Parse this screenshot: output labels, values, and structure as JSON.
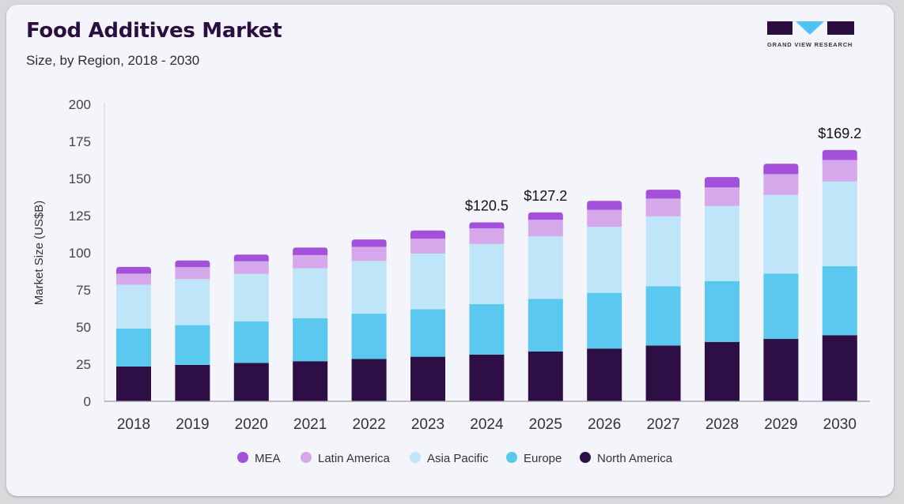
{
  "header": {
    "title": "Food Additives Market",
    "subtitle": "Size, by Region, 2018 - 2030"
  },
  "brand": {
    "name": "GRAND VIEW RESEARCH",
    "logo_colors": [
      "#2b0f41",
      "#4fc3f7",
      "#2b0f41"
    ]
  },
  "chart_data": {
    "type": "bar",
    "stacked": true,
    "title": "Food Additives Market",
    "subtitle": "Size, by Region, 2018 - 2030",
    "xlabel": "",
    "ylabel": "Market Size (US$B)",
    "ylim": [
      0,
      200
    ],
    "yticks": [
      0,
      25,
      50,
      75,
      100,
      125,
      150,
      175,
      200
    ],
    "grid": false,
    "legend_position": "bottom",
    "categories": [
      "2018",
      "2019",
      "2020",
      "2021",
      "2022",
      "2023",
      "2024",
      "2025",
      "2026",
      "2027",
      "2028",
      "2029",
      "2030"
    ],
    "series": [
      {
        "name": "North America",
        "color": "#2d0e45",
        "values": [
          23.5,
          24.5,
          25.8,
          27.0,
          28.5,
          30.0,
          31.5,
          33.5,
          35.5,
          37.5,
          40.0,
          42.0,
          44.5
        ]
      },
      {
        "name": "Europe",
        "color": "#5bc8f0",
        "values": [
          25.5,
          26.8,
          28.0,
          29.0,
          30.5,
          32.0,
          34.0,
          35.5,
          37.5,
          40.0,
          41.0,
          44.0,
          46.5
        ]
      },
      {
        "name": "Asia Pacific",
        "color": "#bfe6f8",
        "values": [
          29.5,
          31.0,
          32.0,
          33.5,
          35.5,
          37.5,
          40.5,
          42.0,
          44.5,
          47.0,
          50.5,
          53.0,
          57.0
        ]
      },
      {
        "name": "Latin America",
        "color": "#d5a8ec",
        "values": [
          7.5,
          8.0,
          8.5,
          9.0,
          9.5,
          10.0,
          10.5,
          11.2,
          11.5,
          12.0,
          12.5,
          14.0,
          14.5
        ]
      },
      {
        "name": "MEA",
        "color": "#a350da",
        "values": [
          4.5,
          4.5,
          4.5,
          5.0,
          5.0,
          5.5,
          4.0,
          5.0,
          6.0,
          6.0,
          7.0,
          7.0,
          6.7
        ]
      }
    ],
    "annotations": [
      {
        "category": "2024",
        "text": "$120.5"
      },
      {
        "category": "2025",
        "text": "$127.2"
      },
      {
        "category": "2030",
        "text": "$169.2"
      }
    ],
    "legend_order": [
      "MEA",
      "Latin America",
      "Asia Pacific",
      "Europe",
      "North America"
    ]
  }
}
